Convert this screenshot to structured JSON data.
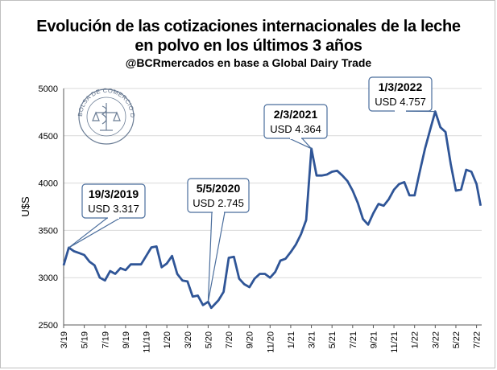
{
  "title_line1": "Evolución de las cotizaciones internacionales de la leche",
  "title_line2": "en polvo en los últimos 3 años",
  "subtitle": "@BCRmercados en base a Global Dairy Trade",
  "logo": {
    "text": "BOLSA DE COMERCIO DE ROSARIO",
    "icon": "caduceus-seal-icon"
  },
  "colors": {
    "line": "#2f5597",
    "callout_border": "#4a6d9c",
    "grid": "#d9d9d9"
  },
  "chart_data": {
    "type": "line",
    "ylabel": "U$S",
    "ylim": [
      2500,
      5000
    ],
    "yticks": [
      2500,
      3000,
      3500,
      4000,
      4500,
      5000
    ],
    "xlim": [
      0,
      40.5
    ],
    "xticks": [
      {
        "label": "3/19",
        "x": 0
      },
      {
        "label": "5/19",
        "x": 2
      },
      {
        "label": "7/19",
        "x": 4
      },
      {
        "label": "9/19",
        "x": 6
      },
      {
        "label": "11/19",
        "x": 8
      },
      {
        "label": "1/20",
        "x": 10
      },
      {
        "label": "3/20",
        "x": 12
      },
      {
        "label": "5/20",
        "x": 14
      },
      {
        "label": "7/20",
        "x": 16
      },
      {
        "label": "9/20",
        "x": 18
      },
      {
        "label": "11/20",
        "x": 20
      },
      {
        "label": "1/21",
        "x": 22
      },
      {
        "label": "3/21",
        "x": 24
      },
      {
        "label": "5/21",
        "x": 26
      },
      {
        "label": "7/21",
        "x": 28
      },
      {
        "label": "9/21",
        "x": 30
      },
      {
        "label": "11/21",
        "x": 32
      },
      {
        "label": "1/22",
        "x": 34
      },
      {
        "label": "3/22",
        "x": 36
      },
      {
        "label": "5/22",
        "x": 38
      },
      {
        "label": "7/22",
        "x": 40
      }
    ],
    "grid": "horizontal",
    "series": [
      {
        "points": [
          [
            0,
            3130
          ],
          [
            0.5,
            3317
          ],
          [
            1,
            3280
          ],
          [
            1.5,
            3260
          ],
          [
            2,
            3240
          ],
          [
            2.5,
            3170
          ],
          [
            3,
            3130
          ],
          [
            3.5,
            3000
          ],
          [
            4,
            2970
          ],
          [
            4.5,
            3070
          ],
          [
            5,
            3040
          ],
          [
            5.5,
            3100
          ],
          [
            6,
            3080
          ],
          [
            6.5,
            3140
          ],
          [
            7,
            3140
          ],
          [
            7.5,
            3140
          ],
          [
            8,
            3230
          ],
          [
            8.5,
            3320
          ],
          [
            9,
            3330
          ],
          [
            9.5,
            3110
          ],
          [
            10,
            3150
          ],
          [
            10.5,
            3230
          ],
          [
            11,
            3040
          ],
          [
            11.5,
            2970
          ],
          [
            12,
            2960
          ],
          [
            12.5,
            2800
          ],
          [
            13,
            2810
          ],
          [
            13.5,
            2710
          ],
          [
            14,
            2745
          ],
          [
            14.3,
            2680
          ],
          [
            15,
            2760
          ],
          [
            15.5,
            2850
          ],
          [
            16,
            3210
          ],
          [
            16.5,
            3220
          ],
          [
            17,
            2990
          ],
          [
            17.5,
            2930
          ],
          [
            18,
            2900
          ],
          [
            18.5,
            2990
          ],
          [
            19,
            3040
          ],
          [
            19.5,
            3040
          ],
          [
            20,
            3000
          ],
          [
            20.5,
            3060
          ],
          [
            21,
            3180
          ],
          [
            21.5,
            3200
          ],
          [
            22,
            3270
          ],
          [
            22.5,
            3350
          ],
          [
            23,
            3460
          ],
          [
            23.5,
            3610
          ],
          [
            24,
            4364
          ],
          [
            24.5,
            4080
          ],
          [
            25,
            4080
          ],
          [
            25.5,
            4090
          ],
          [
            26,
            4120
          ],
          [
            26.5,
            4130
          ],
          [
            27,
            4080
          ],
          [
            27.5,
            4020
          ],
          [
            28,
            3920
          ],
          [
            28.5,
            3790
          ],
          [
            29,
            3620
          ],
          [
            29.5,
            3560
          ],
          [
            30,
            3680
          ],
          [
            30.5,
            3780
          ],
          [
            31,
            3760
          ],
          [
            31.5,
            3830
          ],
          [
            32,
            3930
          ],
          [
            32.5,
            3990
          ],
          [
            33,
            4010
          ],
          [
            33.5,
            3870
          ],
          [
            34,
            3870
          ],
          [
            34.5,
            4120
          ],
          [
            35,
            4360
          ],
          [
            35.5,
            4560
          ],
          [
            36,
            4757
          ],
          [
            36.5,
            4590
          ],
          [
            37,
            4540
          ],
          [
            37.5,
            4200
          ],
          [
            38,
            3920
          ],
          [
            38.5,
            3930
          ],
          [
            39,
            4140
          ],
          [
            39.5,
            4120
          ],
          [
            40,
            3990
          ],
          [
            40.4,
            3760
          ]
        ]
      }
    ],
    "annotations": [
      {
        "date": "19/3/2019",
        "value": "USD 3.317",
        "x": 0.5,
        "y": 3317
      },
      {
        "date": "5/5/2020",
        "value": "USD 2.745",
        "x": 14,
        "y": 2745
      },
      {
        "date": "2/3/2021",
        "value": "USD 4.364",
        "x": 24,
        "y": 4364
      },
      {
        "date": "1/3/2022",
        "value": "USD 4.757",
        "x": 36,
        "y": 4757
      }
    ]
  }
}
